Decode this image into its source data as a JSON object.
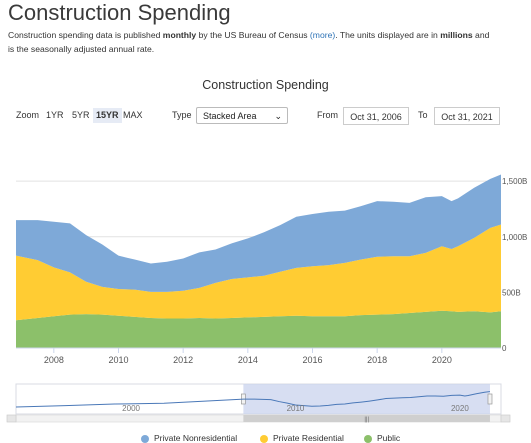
{
  "page": {
    "title": "Construction Spending",
    "desc_1": "Construction spending data is published ",
    "desc_bold_1": "monthly",
    "desc_2": " by the US Bureau of Census ",
    "desc_link": "(more)",
    "desc_3": ". The units displayed are in ",
    "desc_bold_2": "millions",
    "desc_4": " and",
    "desc_line2": "is the seasonally adjusted annual rate."
  },
  "controls": {
    "zoom_label": "Zoom",
    "zoom_options": [
      "1YR",
      "5YR",
      "15YR",
      "MAX"
    ],
    "zoom_selected": "15YR",
    "type_label": "Type",
    "type_value": "Stacked Area",
    "from_label": "From",
    "from_value": "Oct 31, 2006",
    "to_label": "To",
    "to_value": "Oct 31, 2021"
  },
  "chart_data": {
    "type": "area",
    "stacked": true,
    "title": "Construction Spending",
    "x": [
      2006.83,
      2007.5,
      2008.0,
      2008.5,
      2009.0,
      2009.5,
      2010.0,
      2010.5,
      2011.0,
      2011.5,
      2012.0,
      2012.5,
      2013.0,
      2013.5,
      2014.0,
      2014.5,
      2015.0,
      2015.5,
      2016.0,
      2016.5,
      2017.0,
      2017.5,
      2018.0,
      2018.5,
      2019.0,
      2019.5,
      2020.0,
      2020.3,
      2020.5,
      2021.0,
      2021.5,
      2021.83
    ],
    "series": [
      {
        "name": "Public",
        "color": "#8cc06a",
        "values": [
          250,
          270,
          285,
          300,
          305,
          300,
          290,
          280,
          270,
          265,
          265,
          270,
          265,
          270,
          275,
          280,
          285,
          290,
          285,
          285,
          285,
          295,
          300,
          305,
          315,
          325,
          335,
          330,
          325,
          330,
          320,
          330
        ]
      },
      {
        "name": "Private Residential",
        "color": "#ffcc33",
        "values": [
          580,
          520,
          440,
          380,
          290,
          250,
          240,
          245,
          235,
          240,
          250,
          270,
          320,
          350,
          360,
          370,
          400,
          430,
          450,
          460,
          480,
          500,
          520,
          520,
          510,
          530,
          580,
          560,
          590,
          660,
          760,
          780
        ]
      },
      {
        "name": "Private Nonresidential",
        "color": "#7ea9d8",
        "values": [
          320,
          360,
          410,
          440,
          420,
          380,
          300,
          270,
          255,
          270,
          290,
          320,
          300,
          320,
          350,
          390,
          420,
          460,
          470,
          480,
          470,
          480,
          500,
          490,
          480,
          500,
          450,
          430,
          430,
          450,
          440,
          450
        ]
      }
    ],
    "xticks": [
      "2008",
      "2010",
      "2012",
      "2014",
      "2016",
      "2018",
      "2020"
    ],
    "yticks": [
      "0",
      "500B",
      "1,000B",
      "1,500B"
    ],
    "xlim": [
      2006.83,
      2021.83
    ],
    "ylim": [
      0,
      1600
    ],
    "grid": true,
    "legend_position": "bottom"
  },
  "navigator": {
    "labels": [
      "2000",
      "2010",
      "2020"
    ],
    "range_start": 2006.83,
    "range_end": 2021.83,
    "handle_glyph": "|||"
  }
}
